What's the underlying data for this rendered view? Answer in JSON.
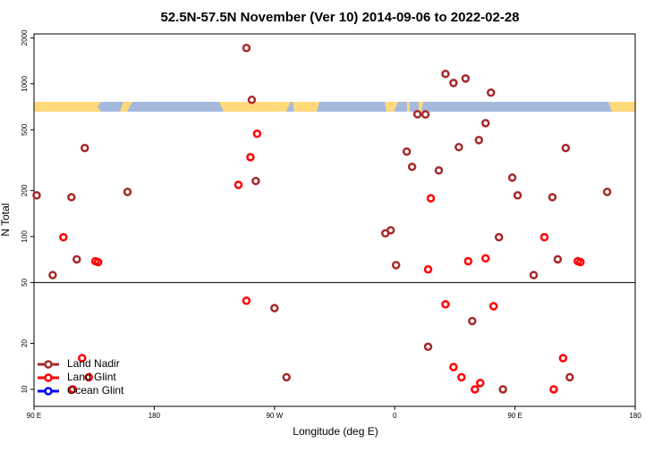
{
  "chart_data": {
    "type": "scatter",
    "title": "52.5N-57.5N November (Ver 10)   2014-09-06 to 2022-02-28",
    "x_label": "Longitude (deg E)",
    "y_label": "N Total",
    "log_y": true,
    "xlim": [
      -270,
      180
    ],
    "xticks": [
      {
        "value": -270,
        "label": "90 E"
      },
      {
        "value": -180,
        "label": "180"
      },
      {
        "value": -90,
        "label": "90 W"
      },
      0,
      {
        "value": 90,
        "label": "90 E"
      },
      {
        "value": 180,
        "label": "180"
      }
    ],
    "ylim": [
      7.74,
      2120
    ],
    "yticks": [
      10,
      20,
      50,
      100,
      200,
      500,
      1000,
      2000
    ],
    "hline": 50,
    "legend": "bottom-left",
    "series": [
      {
        "name": "Land Nadir",
        "color": "#a52a2a",
        "x": [
          -268,
          -256,
          -242,
          -238,
          -232,
          -200,
          -111,
          -107,
          -104,
          -90,
          -81,
          -7,
          -3,
          1,
          9,
          13,
          17,
          23,
          25,
          33,
          38,
          44,
          48,
          53,
          58,
          63,
          68,
          72,
          78,
          81,
          88,
          92,
          104,
          118,
          122,
          128,
          131,
          159
        ],
        "values": [
          186,
          56,
          181,
          71,
          380,
          196,
          1715,
          785,
          231,
          34,
          12,
          105,
          110,
          65,
          360,
          286,
          632,
          630,
          19,
          271,
          1160,
          1013,
          385,
          1084,
          28,
          428,
          553,
          875,
          99,
          10,
          243,
          186,
          56,
          181,
          71,
          380,
          12,
          196
        ]
      },
      {
        "name": "Land Glint",
        "color": "#ff0000",
        "x": [
          -248,
          -241,
          -234,
          -229,
          -224,
          -222,
          -117,
          -111,
          -108,
          -103,
          25,
          27,
          38,
          44,
          50,
          55,
          60,
          64,
          68,
          74,
          112,
          119,
          126,
          137,
          139
        ],
        "values": [
          99,
          10,
          16,
          12,
          69,
          68,
          218,
          38,
          331,
          471,
          61,
          178,
          36,
          14,
          12,
          69,
          10,
          11,
          72,
          35,
          99,
          10,
          16,
          69,
          68
        ]
      },
      {
        "name": "Ocean Glint",
        "color": "#0000ff",
        "x": [],
        "values": []
      }
    ]
  }
}
